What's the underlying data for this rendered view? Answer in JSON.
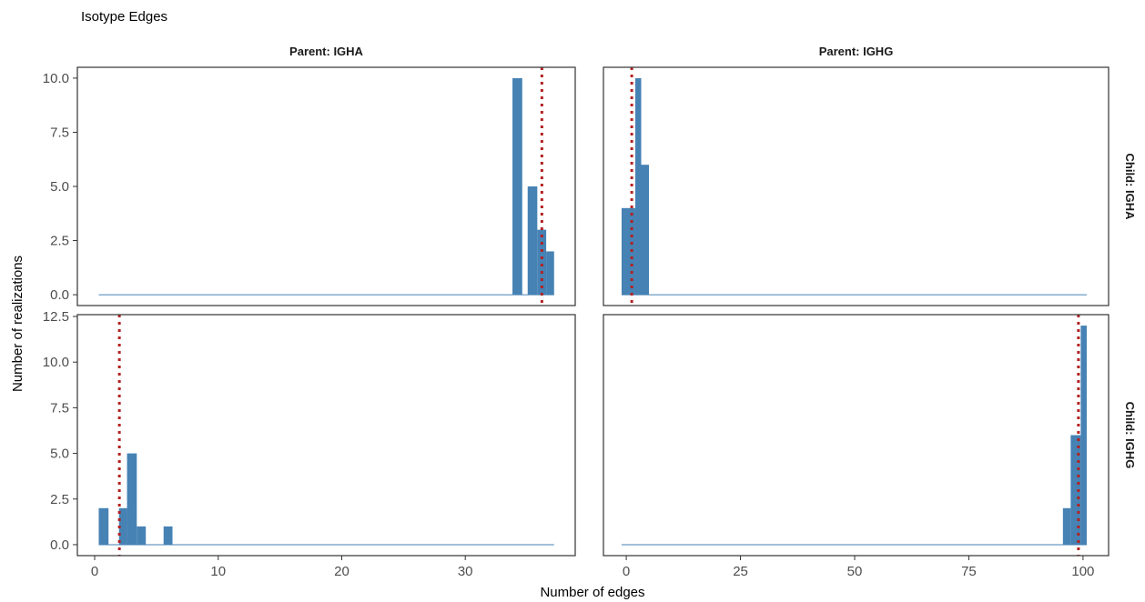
{
  "chart_data": {
    "type": "bar",
    "title": "Isotype Edges",
    "xlabel": "Number of edges",
    "ylabel": "Number of realizations",
    "grid": false,
    "col_facets": [
      "Parent: IGHA",
      "Parent: IGHG"
    ],
    "row_facets": [
      "Child: IGHA",
      "Child: IGHG"
    ],
    "x_ticks": [
      [
        0,
        10,
        20,
        30
      ],
      [
        0,
        25,
        50,
        75,
        100
      ]
    ],
    "x_tick_labels": [
      [
        "0",
        "10",
        "20",
        "30"
      ],
      [
        "0",
        "25",
        "50",
        "75",
        "100"
      ]
    ],
    "xlim": [
      [
        -1.4,
        38.9
      ],
      [
        -5.0,
        105.6
      ]
    ],
    "y_ticks": [
      [
        0,
        2.5,
        5,
        7.5,
        10
      ],
      [
        0,
        2.5,
        5,
        7.5,
        10,
        12.5
      ]
    ],
    "y_tick_labels": [
      [
        "0.0",
        "2.5",
        "5.0",
        "7.5",
        "10.0"
      ],
      [
        "0.0",
        "2.5",
        "5.0",
        "7.5",
        "10.0",
        "12.5"
      ]
    ],
    "ylim": [
      [
        -0.5,
        10.5
      ],
      [
        -0.6,
        12.6
      ]
    ],
    "bar_color": "#4682B4",
    "reference_line_color": "#B22222",
    "panels": [
      {
        "row": 0,
        "col": 0,
        "hist_range": [
          0.33,
          37.19
        ],
        "bins": [
          {
            "x0": 33.82,
            "x1": 34.61,
            "count": 10
          },
          {
            "x0": 35.05,
            "x1": 35.83,
            "count": 5
          },
          {
            "x0": 35.83,
            "x1": 36.55,
            "count": 3
          },
          {
            "x0": 36.55,
            "x1": 37.19,
            "count": 2
          }
        ],
        "reference": 36.2
      },
      {
        "row": 0,
        "col": 1,
        "hist_range": [
          -1.03,
          100.81
        ],
        "bins": [
          {
            "x0": -1.03,
            "x1": 1.97,
            "count": 4
          },
          {
            "x0": 1.97,
            "x1": 3.27,
            "count": 10
          },
          {
            "x0": 3.27,
            "x1": 4.97,
            "count": 6
          }
        ],
        "reference": 1.2
      },
      {
        "row": 1,
        "col": 0,
        "hist_range": [
          0.33,
          37.19
        ],
        "bins": [
          {
            "x0": 0.33,
            "x1": 1.12,
            "count": 2
          },
          {
            "x0": 1.97,
            "x1": 2.62,
            "count": 2
          },
          {
            "x0": 2.62,
            "x1": 3.41,
            "count": 5
          },
          {
            "x0": 3.41,
            "x1": 4.14,
            "count": 1
          },
          {
            "x0": 5.58,
            "x1": 6.3,
            "count": 1
          }
        ],
        "reference": 2.0
      },
      {
        "row": 1,
        "col": 1,
        "hist_range": [
          -1.03,
          100.81
        ],
        "bins": [
          {
            "x0": 95.6,
            "x1": 97.3,
            "count": 2
          },
          {
            "x0": 97.3,
            "x1": 99.5,
            "count": 6
          },
          {
            "x0": 99.5,
            "x1": 100.81,
            "count": 12
          }
        ],
        "reference": 99.0
      }
    ]
  }
}
